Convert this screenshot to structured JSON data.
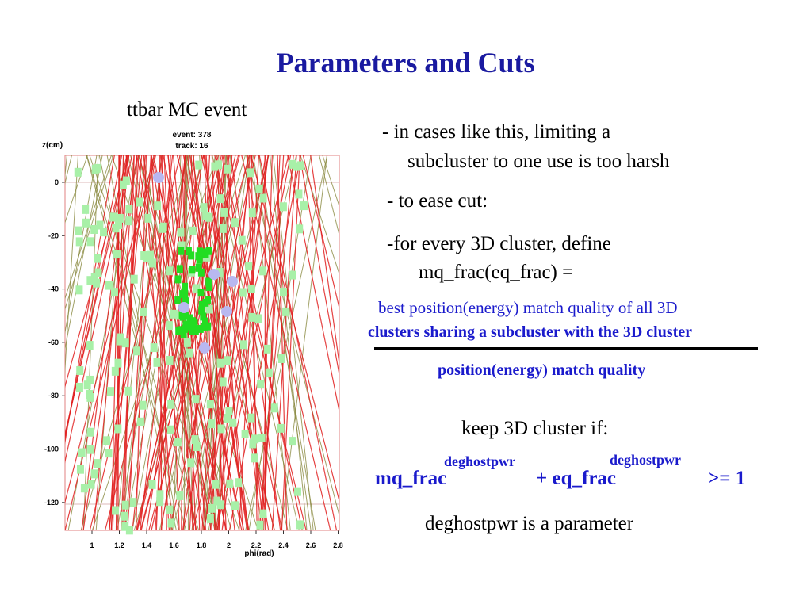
{
  "slide": {
    "title": "Parameters and Cuts",
    "plot_caption": "ttbar MC event",
    "bullet1_line1": "- in cases like this, limiting a",
    "bullet1_line2": "subcluster to one use is too harsh",
    "bullet2": "- to ease cut:",
    "bullet3_line1": "-for every 3D cluster, define",
    "bullet3_line2": "mq_frac(eq_frac) =",
    "numerator_line1": "best position(energy) match quality of all 3D",
    "numerator_line2": "clusters sharing a subcluster with the 3D cluster",
    "denominator": "position(energy) match quality",
    "keep_label": "keep 3D cluster if:",
    "cut_term1": "mq_frac",
    "cut_exp1": "deghostpwr",
    "cut_plus": "+ eq_frac",
    "cut_exp2": "deghostpwr",
    "cut_rhs": ">= 1",
    "param_note": "deghostpwr is a parameter"
  },
  "colors": {
    "title": "#1a1aa0",
    "formula": "#1a1acc",
    "track_red": "#e02020",
    "track_olive": "#8a8a40",
    "hit_light_green": "#a8f0a8",
    "hit_bright_green": "#22dd22",
    "cluster_lavender": "#b8b8f0"
  },
  "plot": {
    "event_label": "event: 378",
    "track_label": "track: 16",
    "ylabel": "z(cm)",
    "xlabel": "phi(rad)",
    "y_ticks": [
      "0",
      "-20",
      "-40",
      "-60",
      "-80",
      "-100",
      "-120"
    ],
    "x_ticks": [
      "1",
      "1.2",
      "1.4",
      "1.6",
      "1.8",
      "2",
      "2.2",
      "2.4",
      "2.6",
      "2.8"
    ]
  }
}
